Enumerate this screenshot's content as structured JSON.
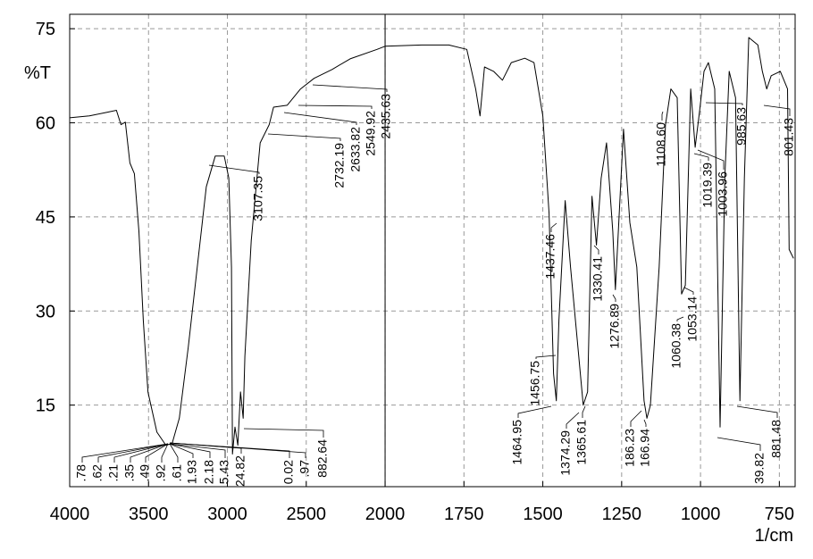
{
  "chart_data": {
    "type": "line",
    "y_label": "%T",
    "x_label": "1/cm",
    "x": [
      4000,
      3875,
      3760,
      3704,
      3675,
      3647,
      3618,
      3590,
      3561,
      3533,
      3504,
      3447,
      3390,
      3350,
      3305,
      3248,
      3191,
      3134,
      3077,
      3020,
      2991,
      2974,
      2968,
      2952,
      2934,
      2917,
      2900,
      2889,
      2849,
      2792,
      2735,
      2707,
      2621,
      2536,
      2450,
      2336,
      2222,
      2051,
      2000,
      1884,
      1798,
      1741,
      1713,
      1699,
      1685,
      1656,
      1628,
      1600,
      1557,
      1528,
      1500,
      1480,
      1466,
      1457,
      1449,
      1429,
      1412,
      1386,
      1372,
      1358,
      1344,
      1330,
      1315,
      1298,
      1278,
      1270,
      1244,
      1224,
      1202,
      1179,
      1170,
      1159,
      1131,
      1111,
      1094,
      1074,
      1060,
      1048,
      1031,
      1017,
      1003,
      989,
      975,
      955,
      938,
      923,
      909,
      889,
      875,
      861,
      847,
      818,
      804,
      790,
      776,
      747,
      724,
      719,
      705
    ],
    "series": [
      {
        "color": "#000000",
        "values": [
          60.8,
          61.1,
          61.7,
          62.0,
          59.7,
          60.1,
          53.6,
          51.9,
          42.7,
          28.5,
          17.1,
          10.7,
          8.6,
          8.9,
          12.9,
          24.2,
          37.0,
          49.8,
          54.7,
          54.7,
          51.2,
          37.0,
          7.2,
          11.5,
          8.6,
          17.1,
          12.9,
          22.8,
          41.2,
          56.8,
          59.7,
          62.5,
          62.8,
          65.4,
          67.1,
          68.5,
          70.2,
          71.7,
          72.2,
          72.4,
          72.4,
          71.7,
          65.4,
          61.1,
          68.9,
          68.2,
          66.8,
          69.6,
          70.3,
          69.6,
          61.1,
          45.5,
          20.0,
          15.7,
          28.5,
          47.6,
          37.0,
          22.8,
          15.0,
          17.1,
          48.3,
          40.5,
          51.2,
          56.8,
          42.7,
          33.4,
          59.0,
          44.1,
          37.0,
          15.7,
          12.9,
          15.0,
          37.0,
          59.7,
          65.4,
          64.0,
          32.7,
          34.1,
          65.4,
          56.1,
          61.8,
          68.2,
          69.6,
          65.4,
          11.5,
          51.2,
          68.2,
          64.0,
          15.7,
          51.2,
          73.6,
          72.4,
          68.2,
          65.4,
          67.5,
          68.2,
          65.4,
          39.8,
          38.4
        ]
      }
    ],
    "xlim": [
      4000,
      700
    ],
    "ylim": [
      2,
      77.3
    ],
    "xticks": [
      4000,
      3500,
      3000,
      2500,
      2000,
      1750,
      1500,
      1250,
      1000,
      750
    ],
    "yticks": [
      15,
      30,
      45,
      60,
      75
    ],
    "grid": true,
    "x_scale_break": {
      "at": 2000,
      "factor": 2
    },
    "peak_labels": [
      ".78",
      ".62",
      ".21",
      ".35",
      ".49",
      ".92",
      ".61",
      "1.93",
      "2.18",
      "5.43",
      "24.82",
      "0.02",
      ".97",
      "882.64",
      "3107.35",
      "2732.19",
      "2633.82",
      "2549.92",
      "2435.63",
      "1437.46",
      "1456.75",
      "1464.95",
      "1374.29",
      "1365.61",
      "1330.41",
      "1276.89",
      "186.23",
      "166.94",
      "1108.60",
      "1060.38",
      "1053.14",
      "1019.39",
      "1003.96",
      "985.63",
      "801.43",
      "39.82",
      "881.48"
    ]
  }
}
